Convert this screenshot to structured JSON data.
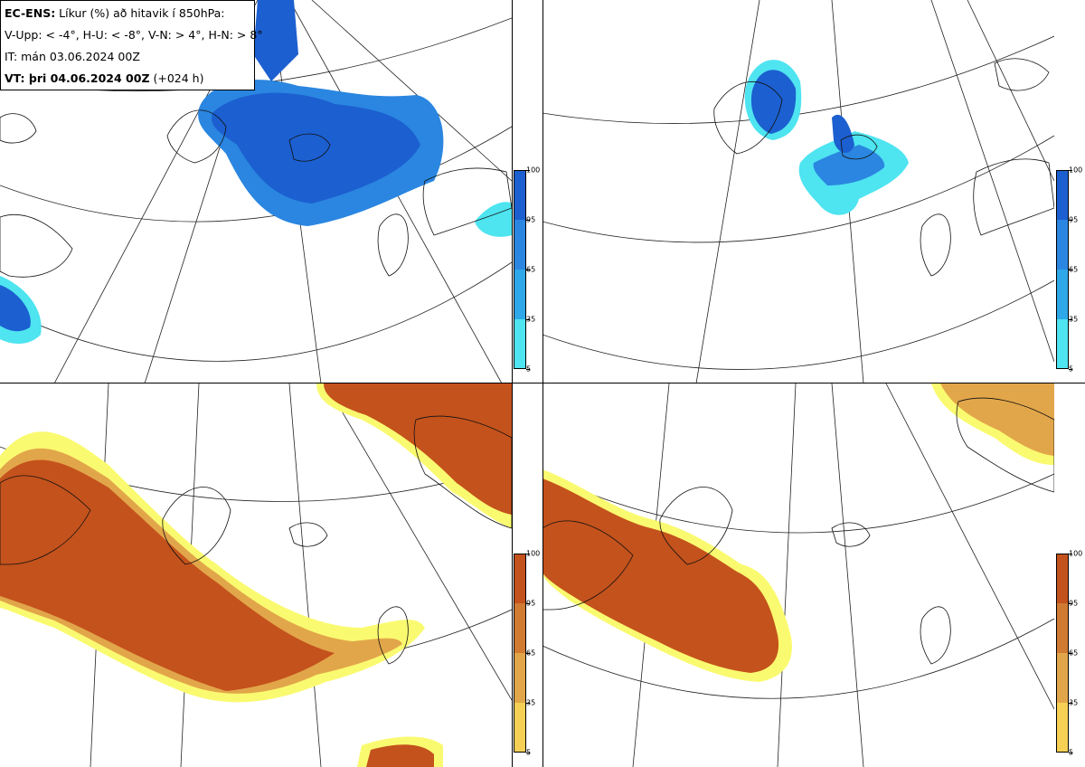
{
  "header": {
    "model": "EC-ENS:",
    "description": " Líkur (%) að hitavik í 850hPa:",
    "thresholds": "V-Upp: < -4°, H-U: < -8°, V-N: > 4°, H-N: > 8°",
    "initial_time": "IT: mán 03.06.2024 00Z",
    "valid_label": "VT: þri 04.06.2024 00Z",
    "lead_time": " (+024 h)"
  },
  "colorbars": {
    "ticks": [
      "5",
      "35",
      "65",
      "95",
      "100"
    ],
    "cold_colors": [
      "#7ff5f5",
      "#4ee4f0",
      "#2ea8e8",
      "#2a86e0",
      "#1c5fd0"
    ],
    "warm_colors": [
      "#fafa70",
      "#f5d055",
      "#e2a64a",
      "#d07a32",
      "#c4521c"
    ]
  },
  "panels": [
    {
      "id": "V-Upp",
      "palette": "cold"
    },
    {
      "id": "H-U",
      "palette": "cold"
    },
    {
      "id": "V-N",
      "palette": "warm"
    },
    {
      "id": "H-N",
      "palette": "warm"
    }
  ]
}
